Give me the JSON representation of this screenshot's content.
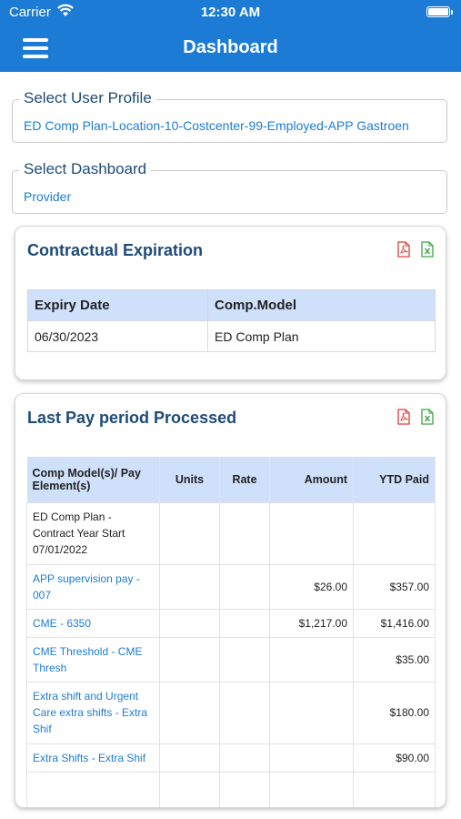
{
  "status_bar": {
    "carrier": "Carrier",
    "time": "12:30 AM"
  },
  "nav": {
    "title": "Dashboard"
  },
  "user_profile": {
    "label": "Select User Profile",
    "value": "ED Comp Plan-Location-10-Costcenter-99-Employed-APP Gastroen"
  },
  "dashboard_select": {
    "label": "Select Dashboard",
    "value": "Provider"
  },
  "contract_card": {
    "title": "Contractual Expiration",
    "headers": [
      "Expiry Date",
      "Comp.Model"
    ],
    "rows": [
      [
        "06/30/2023",
        "ED Comp Plan"
      ]
    ]
  },
  "pay_card": {
    "title": "Last Pay period Processed",
    "headers": {
      "comp_model": "Comp Model(s)/ Pay Element(s)",
      "units": "Units",
      "rate": "Rate",
      "amount": "Amount",
      "ytd": "YTD Paid"
    },
    "rows": [
      {
        "name": "ED Comp Plan - Contract Year Start 07/01/2022",
        "units": "",
        "rate": "",
        "amount": "",
        "ytd": ""
      },
      {
        "name": "APP supervision pay - 007",
        "units": "",
        "rate": "",
        "amount": "$26.00",
        "ytd": "$357.00"
      },
      {
        "name": "CME - 6350",
        "units": "",
        "rate": "",
        "amount": "$1,217.00",
        "ytd": "$1,416.00"
      },
      {
        "name": "CME Threshold - CME Thresh",
        "units": "",
        "rate": "",
        "amount": "",
        "ytd": "$35.00"
      },
      {
        "name": "Extra shift and Urgent Care extra shifts - Extra Shif",
        "units": "",
        "rate": "",
        "amount": "",
        "ytd": "$180.00"
      },
      {
        "name": "Extra Shifts - Extra Shif",
        "units": "",
        "rate": "",
        "amount": "",
        "ytd": "$90.00"
      },
      {
        "name": "",
        "units": "",
        "rate": "",
        "amount": "",
        "ytd": ""
      }
    ]
  },
  "icons": {
    "pdf": "pdf-file-icon",
    "excel": "excel-file-icon"
  },
  "colors": {
    "primary": "#1c7cd5",
    "heading": "#1e4b78",
    "table_header": "#cfe0fb",
    "pdf": "#e53935",
    "excel": "#3fa33f"
  }
}
